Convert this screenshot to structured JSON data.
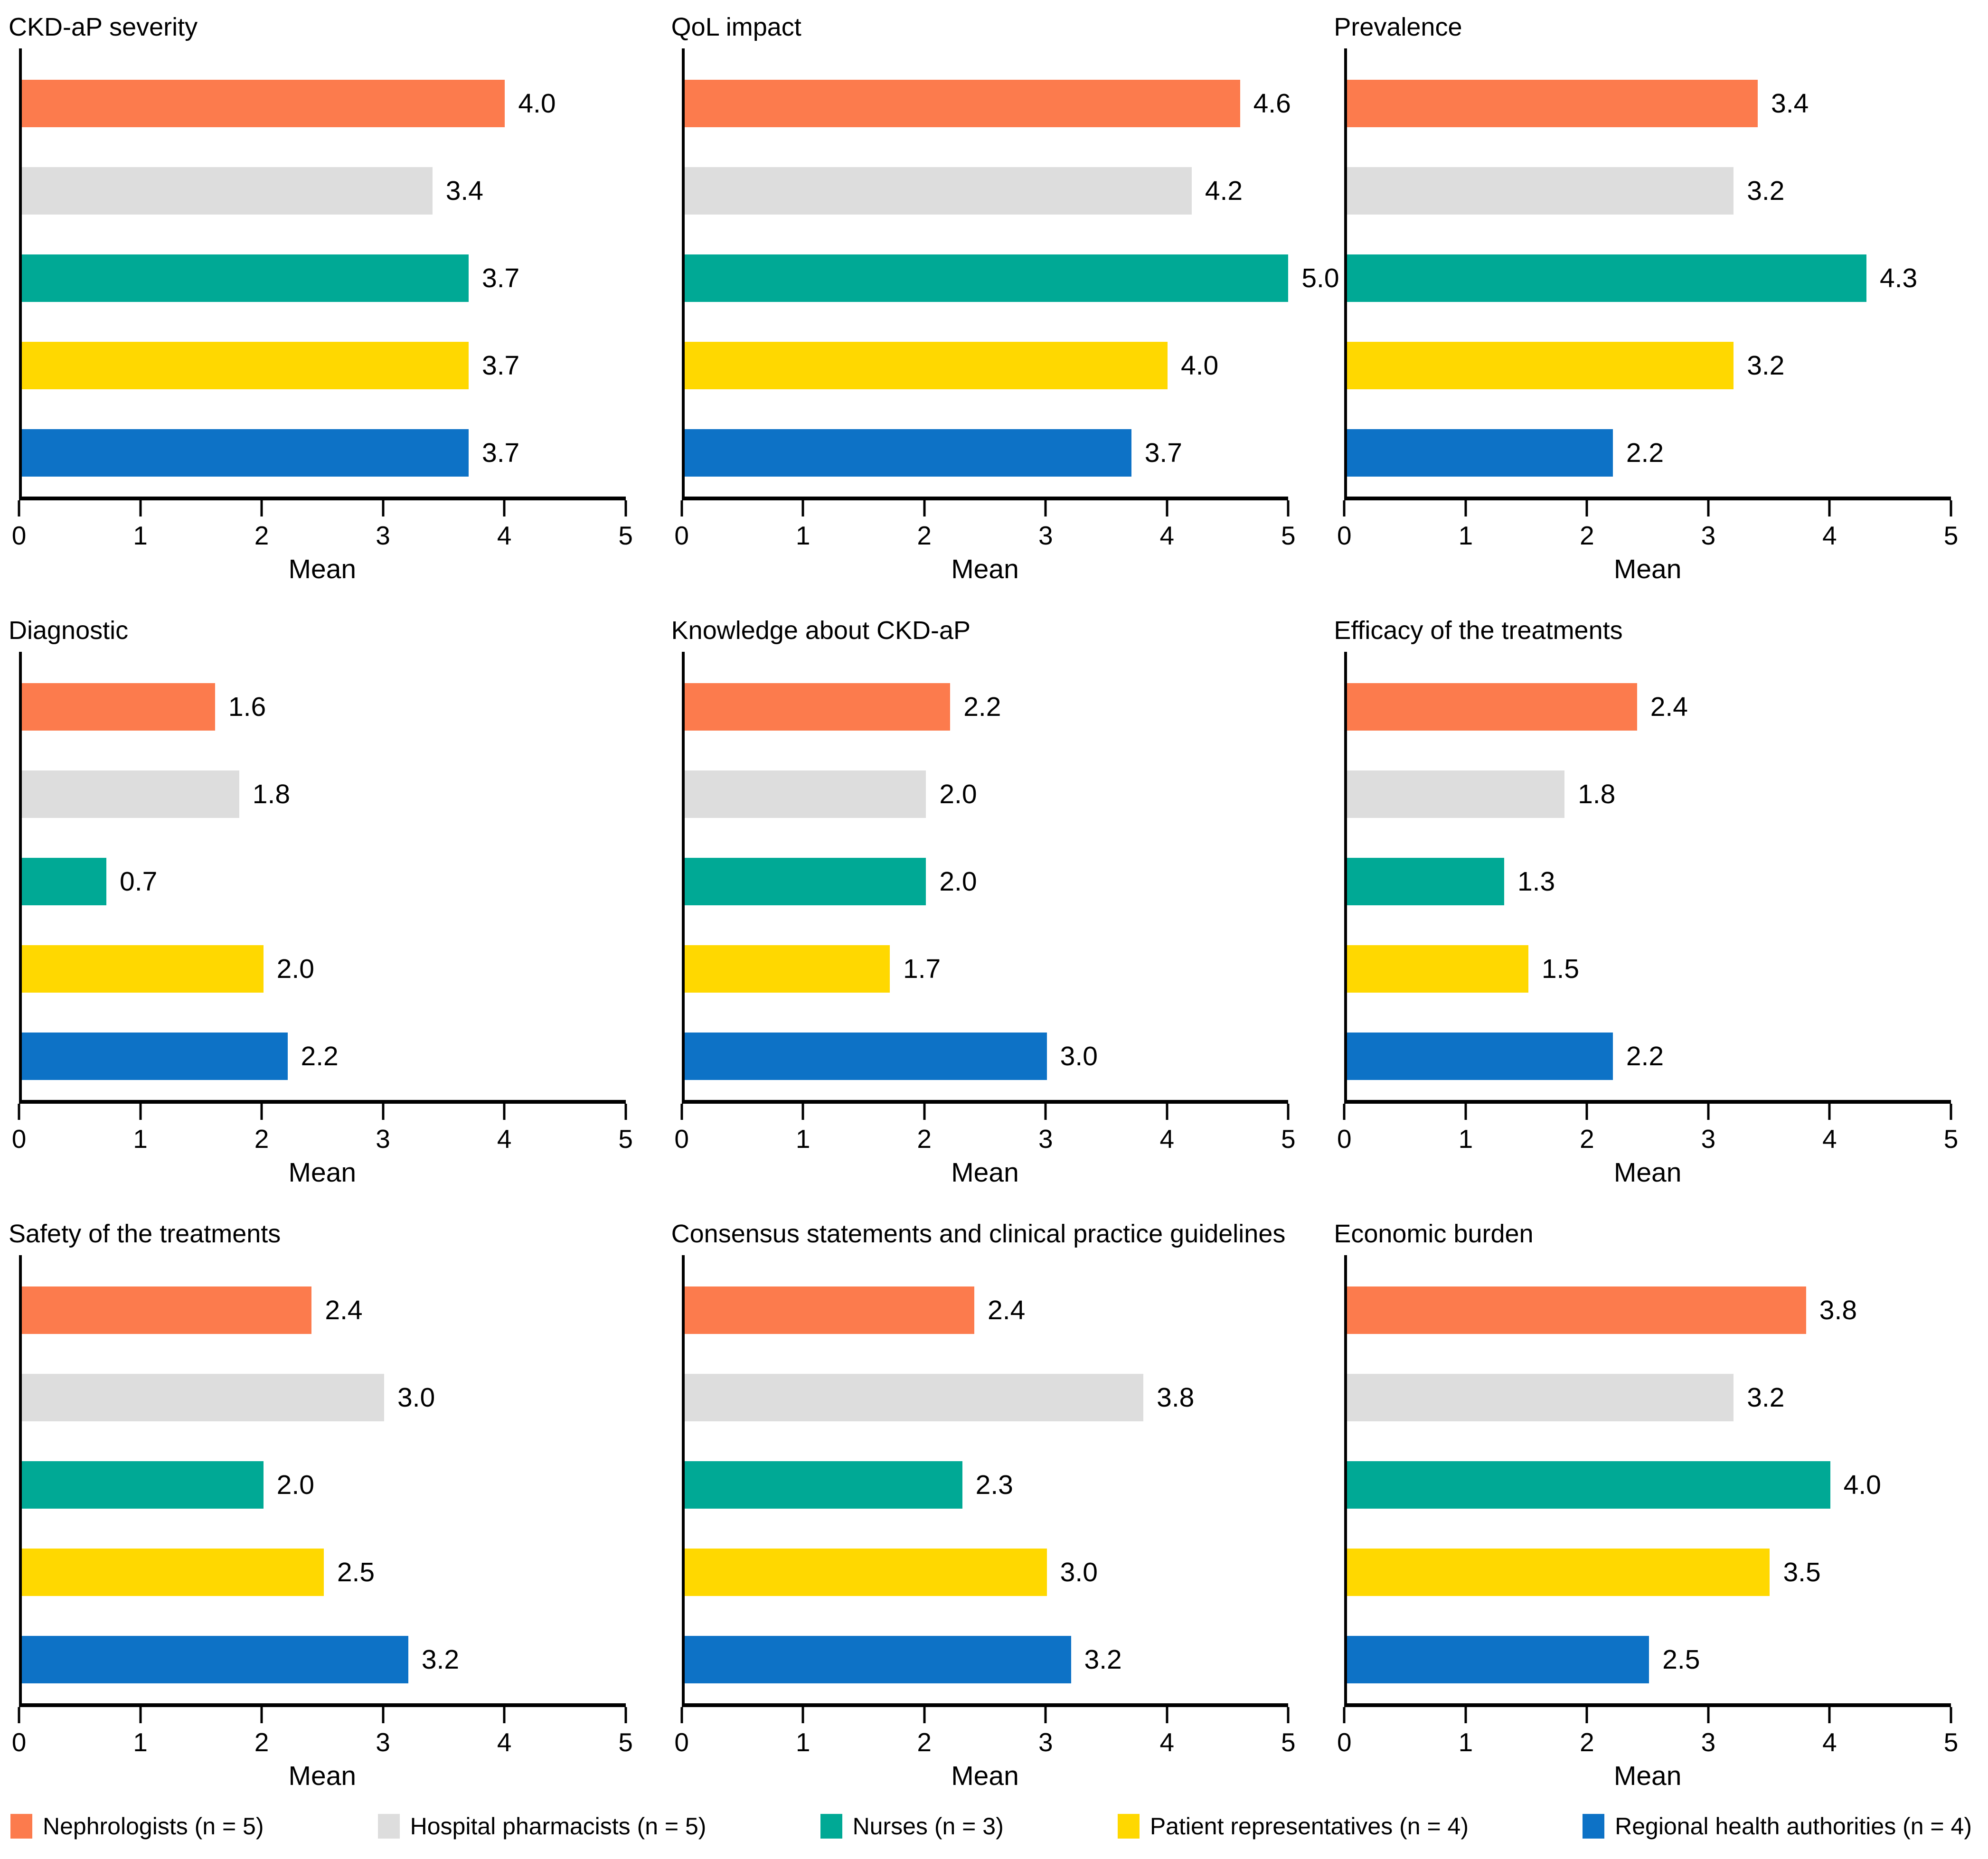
{
  "legend": {
    "items": [
      {
        "label": "Nephrologists (n = 5)",
        "color": "#FC7B4D"
      },
      {
        "label": "Hospital pharmacists (n = 5)",
        "color": "#DDDDDD"
      },
      {
        "label": "Nurses (n = 3)",
        "color": "#00A995"
      },
      {
        "label": "Patient representatives (n = 4)",
        "color": "#FFD800"
      },
      {
        "label": "Regional health authorities (n = 4)",
        "color": "#0D72C6"
      }
    ]
  },
  "chart_data": [
    {
      "type": "bar",
      "orientation": "horizontal",
      "title": "CKD-aP severity",
      "xlabel": "Mean",
      "xlim": [
        0,
        5
      ],
      "xticks": [
        0,
        1,
        2,
        3,
        4,
        5
      ],
      "categories": [
        "Nephrologists (n = 5)",
        "Hospital pharmacists (n = 5)",
        "Nurses (n = 3)",
        "Patient representatives (n = 4)",
        "Regional health authorities (n = 4)"
      ],
      "values": [
        4.0,
        3.4,
        3.7,
        3.7,
        3.7
      ]
    },
    {
      "type": "bar",
      "orientation": "horizontal",
      "title": "QoL impact",
      "xlabel": "Mean",
      "xlim": [
        0,
        5
      ],
      "xticks": [
        0,
        1,
        2,
        3,
        4,
        5
      ],
      "categories": [
        "Nephrologists (n = 5)",
        "Hospital pharmacists (n = 5)",
        "Nurses (n = 3)",
        "Patient representatives (n = 4)",
        "Regional health authorities (n = 4)"
      ],
      "values": [
        4.6,
        4.2,
        5.0,
        4.0,
        3.7
      ]
    },
    {
      "type": "bar",
      "orientation": "horizontal",
      "title": "Prevalence",
      "xlabel": "Mean",
      "xlim": [
        0,
        5
      ],
      "xticks": [
        0,
        1,
        2,
        3,
        4,
        5
      ],
      "categories": [
        "Nephrologists (n = 5)",
        "Hospital pharmacists (n = 5)",
        "Nurses (n = 3)",
        "Patient representatives (n = 4)",
        "Regional health authorities (n = 4)"
      ],
      "values": [
        3.4,
        3.2,
        4.3,
        3.2,
        2.2
      ]
    },
    {
      "type": "bar",
      "orientation": "horizontal",
      "title": "Diagnostic",
      "xlabel": "Mean",
      "xlim": [
        0,
        5
      ],
      "xticks": [
        0,
        1,
        2,
        3,
        4,
        5
      ],
      "categories": [
        "Nephrologists (n = 5)",
        "Hospital pharmacists (n = 5)",
        "Nurses (n = 3)",
        "Patient representatives (n = 4)",
        "Regional health authorities (n = 4)"
      ],
      "values": [
        1.6,
        1.8,
        0.7,
        2.0,
        2.2
      ]
    },
    {
      "type": "bar",
      "orientation": "horizontal",
      "title": "Knowledge about CKD-aP",
      "xlabel": "Mean",
      "xlim": [
        0,
        5
      ],
      "xticks": [
        0,
        1,
        2,
        3,
        4,
        5
      ],
      "categories": [
        "Nephrologists (n = 5)",
        "Hospital pharmacists (n = 5)",
        "Nurses (n = 3)",
        "Patient representatives (n = 4)",
        "Regional health authorities (n = 4)"
      ],
      "values": [
        2.2,
        2.0,
        2.0,
        1.7,
        3.0
      ]
    },
    {
      "type": "bar",
      "orientation": "horizontal",
      "title": "Efficacy of the treatments",
      "xlabel": "Mean",
      "xlim": [
        0,
        5
      ],
      "xticks": [
        0,
        1,
        2,
        3,
        4,
        5
      ],
      "categories": [
        "Nephrologists (n = 5)",
        "Hospital pharmacists (n = 5)",
        "Nurses (n = 3)",
        "Patient representatives (n = 4)",
        "Regional health authorities (n = 4)"
      ],
      "values": [
        2.4,
        1.8,
        1.3,
        1.5,
        2.2
      ]
    },
    {
      "type": "bar",
      "orientation": "horizontal",
      "title": "Safety of the treatments",
      "xlabel": "Mean",
      "xlim": [
        0,
        5
      ],
      "xticks": [
        0,
        1,
        2,
        3,
        4,
        5
      ],
      "categories": [
        "Nephrologists (n = 5)",
        "Hospital pharmacists (n = 5)",
        "Nurses (n = 3)",
        "Patient representatives (n = 4)",
        "Regional health authorities (n = 4)"
      ],
      "values": [
        2.4,
        3.0,
        2.0,
        2.5,
        3.2
      ]
    },
    {
      "type": "bar",
      "orientation": "horizontal",
      "title": "Consensus statements and clinical practice guidelines",
      "xlabel": "Mean",
      "xlim": [
        0,
        5
      ],
      "xticks": [
        0,
        1,
        2,
        3,
        4,
        5
      ],
      "categories": [
        "Nephrologists (n = 5)",
        "Hospital pharmacists (n = 5)",
        "Nurses (n = 3)",
        "Patient representatives (n = 4)",
        "Regional health authorities (n = 4)"
      ],
      "values": [
        2.4,
        3.8,
        2.3,
        3.0,
        3.2
      ]
    },
    {
      "type": "bar",
      "orientation": "horizontal",
      "title": "Economic burden",
      "xlabel": "Mean",
      "xlim": [
        0,
        5
      ],
      "xticks": [
        0,
        1,
        2,
        3,
        4,
        5
      ],
      "categories": [
        "Nephrologists (n = 5)",
        "Hospital pharmacists (n = 5)",
        "Nurses (n = 3)",
        "Patient representatives (n = 4)",
        "Regional health authorities (n = 4)"
      ],
      "values": [
        3.8,
        3.2,
        4.0,
        3.5,
        2.5
      ]
    }
  ]
}
